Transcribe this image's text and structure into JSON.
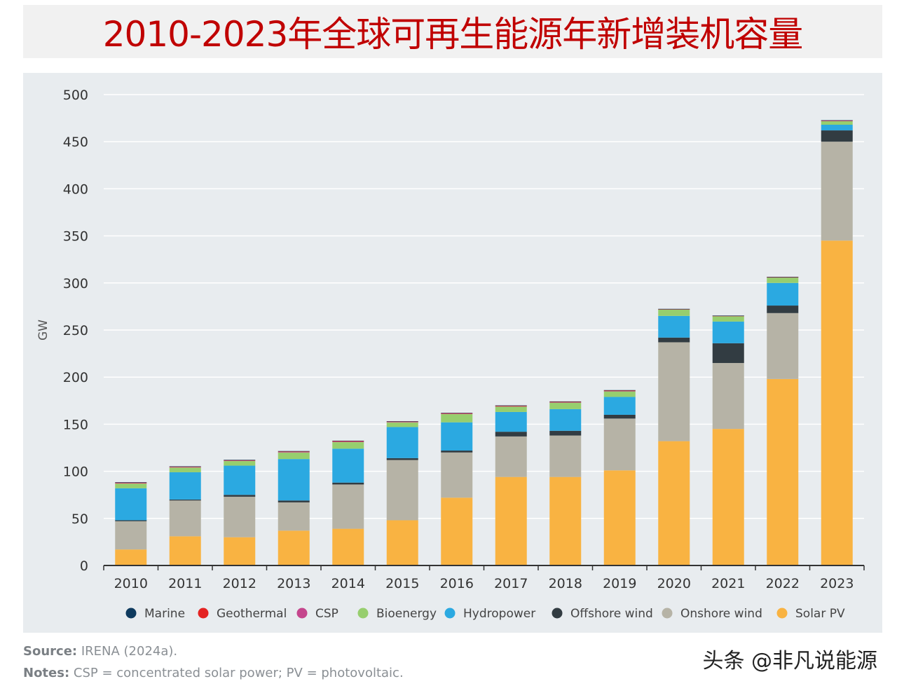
{
  "title": "2010-2023年全球可再生能源年新增装机容量",
  "chart_data": {
    "type": "bar",
    "stacked": true,
    "ylabel": "GW",
    "xlabel": "",
    "ylim": [
      0,
      500
    ],
    "yticks": [
      0,
      50,
      100,
      150,
      200,
      250,
      300,
      350,
      400,
      450,
      500
    ],
    "grid": true,
    "legend_position": "bottom",
    "categories": [
      "2010",
      "2011",
      "2012",
      "2013",
      "2014",
      "2015",
      "2016",
      "2017",
      "2018",
      "2019",
      "2020",
      "2021",
      "2022",
      "2023"
    ],
    "series": [
      {
        "name": "Solar PV",
        "color": "#f9b342",
        "values": [
          17,
          31,
          30,
          37,
          39,
          48,
          72,
          94,
          94,
          101,
          132,
          145,
          198,
          345
        ]
      },
      {
        "name": "Onshore wind",
        "color": "#b6b3a6",
        "values": [
          30,
          38,
          43,
          30,
          47,
          64,
          48,
          43,
          44,
          55,
          105,
          70,
          70,
          105
        ]
      },
      {
        "name": "Offshore wind",
        "color": "#323c42",
        "values": [
          1,
          1,
          2,
          2,
          2,
          2,
          2,
          5,
          5,
          4,
          5,
          21,
          8,
          12
        ]
      },
      {
        "name": "Hydropower",
        "color": "#2ba9e1",
        "values": [
          34,
          29,
          31,
          44,
          36,
          33,
          30,
          21,
          23,
          19,
          23,
          23,
          24,
          6
        ]
      },
      {
        "name": "Bioenergy",
        "color": "#97ce6e",
        "values": [
          5,
          5,
          5,
          7,
          7,
          5,
          9,
          6,
          7,
          6,
          7,
          6,
          6,
          4
        ]
      },
      {
        "name": "CSP",
        "color": "#c5468d",
        "values": [
          0.5,
          0.5,
          0.5,
          0.5,
          0.5,
          0.5,
          0.2,
          0.1,
          0.3,
          0.3,
          0.2,
          0.1,
          0.1,
          0.2
        ]
      },
      {
        "name": "Geothermal",
        "color": "#e42322",
        "values": [
          0.5,
          0.3,
          0.3,
          0.5,
          0.6,
          0.4,
          0.6,
          0.6,
          0.5,
          0.7,
          0.1,
          0.1,
          0.2,
          0.4
        ]
      },
      {
        "name": "Marine",
        "color": "#0e3a5e",
        "values": [
          0.5,
          0.5,
          0.5,
          0.5,
          0.4,
          0.3,
          0.3,
          0.3,
          0.4,
          0.2,
          0.2,
          0.2,
          0.2,
          0.2
        ]
      }
    ],
    "legend": [
      "Marine",
      "Geothermal",
      "CSP",
      "Bioenergy",
      "Hydropower",
      "Offshore wind",
      "Onshore wind",
      "Solar PV"
    ]
  },
  "footer": {
    "source_label": "Source:",
    "source_text": " IRENA (2024a).",
    "notes_label": "Notes:",
    "notes_text": " CSP = concentrated solar power; PV = photovoltaic."
  },
  "watermark": "头条 @非凡说能源",
  "colors": {
    "title": "#c00000",
    "panel": "#e8ecef",
    "grid": "#ffffff",
    "axis": "#333333"
  }
}
